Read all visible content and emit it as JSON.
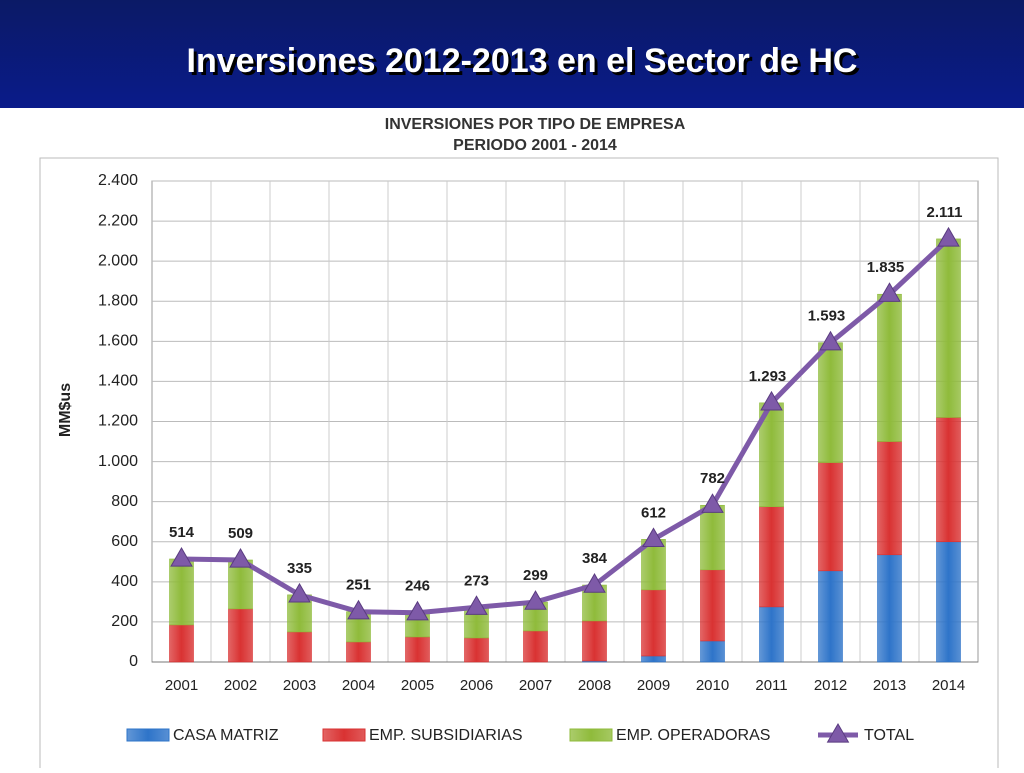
{
  "slide_title": "Inversiones 2012-2013 en el Sector de HC",
  "chart_data": {
    "type": "stacked_bar_line",
    "title": "INVERSIONES POR TIPO DE EMPRESA",
    "subtitle": "PERIODO 2001 - 2014",
    "y_label": "MM$us",
    "categories": [
      "2001",
      "2002",
      "2003",
      "2004",
      "2005",
      "2006",
      "2007",
      "2008",
      "2009",
      "2010",
      "2011",
      "2012",
      "2013",
      "2014"
    ],
    "series": [
      {
        "name": "CASA MATRIZ",
        "color": "#2e74c9",
        "values": [
          0,
          0,
          0,
          0,
          0,
          0,
          0,
          5,
          30,
          105,
          275,
          455,
          535,
          600
        ]
      },
      {
        "name": "EMP. SUBSIDIARIAS",
        "color": "#d93232",
        "values": [
          185,
          265,
          150,
          100,
          125,
          120,
          155,
          200,
          330,
          355,
          500,
          540,
          565,
          620
        ]
      },
      {
        "name": "EMP. OPERADORAS",
        "color": "#8fbb3b",
        "values": [
          329,
          244,
          185,
          151,
          121,
          153,
          144,
          179,
          252,
          322,
          518,
          598,
          735,
          891
        ]
      },
      {
        "name": "TOTAL",
        "color": "#7e5aa8",
        "type": "line",
        "values": [
          514,
          509,
          335,
          251,
          246,
          273,
          299,
          384,
          612,
          782,
          1293,
          1593,
          1835,
          2111
        ],
        "value_labels": [
          "514",
          "509",
          "335",
          "251",
          "246",
          "273",
          "299",
          "384",
          "612",
          "782",
          "1.293",
          "1.593",
          "1.835",
          "2.111"
        ]
      }
    ],
    "ylim": [
      0,
      2400
    ],
    "yticks": [
      0,
      200,
      400,
      600,
      800,
      {
        "value": 1000,
        "label": "1.000"
      },
      {
        "value": 1200,
        "label": "1.200"
      },
      {
        "value": 1400,
        "label": "1.400"
      },
      {
        "value": 1600,
        "label": "1.600"
      },
      {
        "value": 1800,
        "label": "1.800"
      },
      {
        "value": 2000,
        "label": "2.000"
      },
      {
        "value": 2200,
        "label": "2.200"
      },
      {
        "value": 2400,
        "label": "2.400"
      }
    ],
    "grid": true,
    "legend": "bottom"
  }
}
